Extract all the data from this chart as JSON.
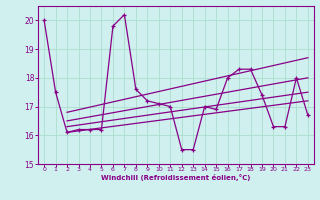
{
  "xlabel": "Windchill (Refroidissement éolien,°C)",
  "background_color": "#cff0ee",
  "grid_color": "#aaddcc",
  "line_color": "#880088",
  "xlim_min": -0.5,
  "xlim_max": 23.5,
  "ylim_min": 15.0,
  "ylim_max": 20.5,
  "yticks": [
    15,
    16,
    17,
    18,
    19,
    20
  ],
  "xticks": [
    0,
    1,
    2,
    3,
    4,
    5,
    6,
    7,
    8,
    9,
    10,
    11,
    12,
    13,
    14,
    15,
    16,
    17,
    18,
    19,
    20,
    21,
    22,
    23
  ],
  "main_x": [
    0,
    1,
    2,
    3,
    4,
    5,
    6,
    7,
    8,
    9,
    10,
    11,
    12,
    13,
    14,
    15,
    16,
    17,
    18,
    19,
    20,
    21,
    22,
    23
  ],
  "main_y": [
    20.0,
    17.5,
    16.1,
    16.2,
    16.2,
    16.2,
    19.8,
    20.2,
    17.6,
    17.2,
    17.1,
    17.0,
    15.5,
    15.5,
    17.0,
    16.9,
    18.0,
    18.3,
    18.3,
    17.4,
    16.3,
    16.3,
    18.0,
    16.7
  ],
  "line2_x": [
    2,
    23
  ],
  "line2_y": [
    16.1,
    17.2
  ],
  "line3_x": [
    2,
    23
  ],
  "line3_y": [
    16.3,
    17.5
  ],
  "line4_x": [
    2,
    23
  ],
  "line4_y": [
    16.5,
    18.0
  ],
  "line5_x": [
    2,
    23
  ],
  "line5_y": [
    16.8,
    18.7
  ]
}
